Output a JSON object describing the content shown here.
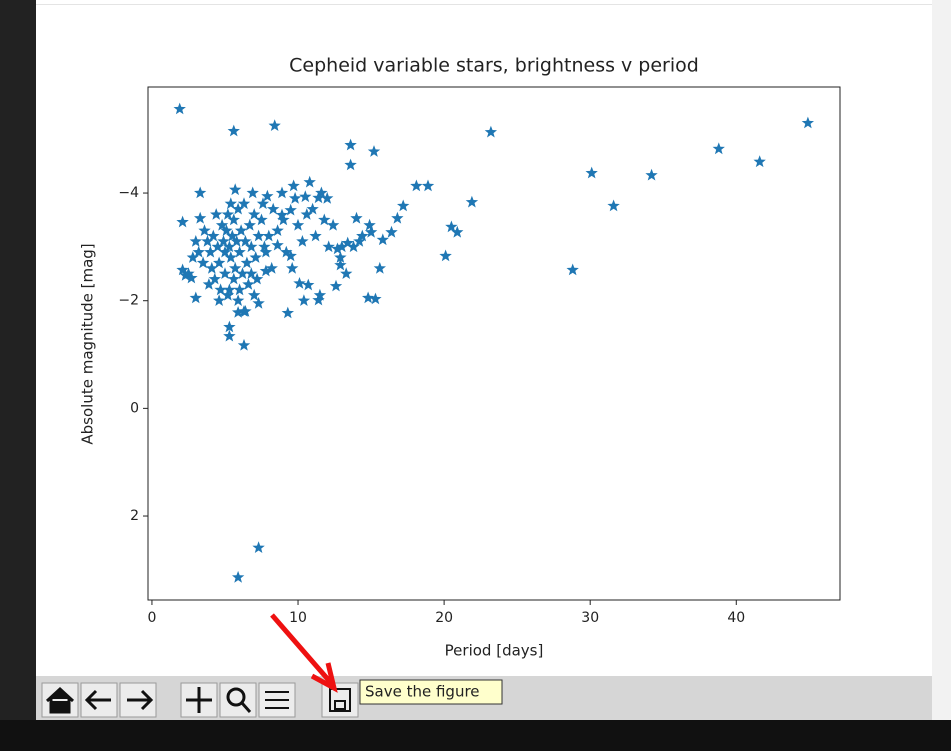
{
  "chart_data": {
    "type": "scatter",
    "title": "Cepheid variable stars, brightness v period",
    "x_label": "Period [days]",
    "y_label": "Absolute magnitude [mag]",
    "color": "#1f77b4",
    "marker": "star",
    "y_inverted": true,
    "xlim": [
      -0.27,
      47.1
    ],
    "ylim": [
      3.56,
      -5.97
    ],
    "xticks": [
      0,
      10,
      20,
      30,
      40
    ],
    "yticks": [
      {
        "value": -4,
        "label": "−4"
      },
      {
        "value": -2,
        "label": "−2"
      },
      0,
      2
    ],
    "x": [
      1.9,
      5.6,
      8.4,
      13.6,
      13.6,
      15.2,
      23.2,
      44.9,
      38.8,
      41.6,
      30.1,
      34.2,
      31.6,
      28.8,
      21.9,
      20.5,
      20.9,
      20.1,
      18.1,
      18.9,
      17.2,
      16.8,
      16.4,
      15.8,
      15.0,
      14.0,
      13.4,
      12.7,
      12.9,
      12.6,
      14.8,
      15.3,
      15.6,
      11.4,
      10.7,
      10.1,
      9.3,
      7.3,
      5.9,
      6.3,
      5.3,
      5.3,
      6.3,
      5.9,
      7.3,
      3.0,
      2.3,
      2.1,
      2.7,
      2.1,
      3.3,
      3.3,
      5.7,
      7.9,
      9.7,
      10.8,
      10.5,
      9.5,
      8.6,
      7.8,
      8.9,
      9.5,
      11.4,
      3.8,
      4.0,
      4.2,
      4.5,
      4.6,
      4.8,
      4.9,
      5.0,
      5.1,
      5.2,
      5.3,
      5.4,
      5.5,
      5.6,
      5.7,
      5.8,
      5.9,
      6.0,
      6.1,
      6.2,
      6.3,
      6.4,
      6.5,
      6.7,
      6.8,
      7.0,
      7.1,
      7.3,
      7.5,
      7.7,
      4.3,
      4.7,
      5.0,
      5.3,
      5.6,
      6.0,
      3.5,
      3.2,
      3.6,
      2.8,
      4.4,
      4.1,
      6.6,
      7.2,
      8.0,
      8.3,
      8.6,
      9.0,
      9.2,
      10.0,
      10.3,
      11.0,
      11.2,
      11.8,
      12.1,
      12.4,
      13.0,
      13.8,
      14.4,
      14.9,
      11.6,
      12.0,
      10.6,
      9.8,
      8.9,
      7.6,
      6.9,
      5.4,
      3.0,
      2.5,
      3.9,
      4.6,
      5.2,
      5.9,
      6.8,
      7.8,
      8.2,
      9.6,
      10.4,
      11.5,
      12.9,
      13.3,
      14.2,
      6.4,
      7.0
    ],
    "values": [
      -5.56,
      -5.15,
      -5.25,
      -4.89,
      -4.52,
      -4.77,
      -5.13,
      -5.3,
      -4.82,
      -4.58,
      -4.37,
      -4.33,
      -3.76,
      -2.57,
      -3.83,
      -3.37,
      -3.27,
      -2.83,
      -4.13,
      -4.13,
      -3.76,
      -3.53,
      -3.27,
      -3.13,
      -3.27,
      -3.53,
      -3.07,
      -2.96,
      -2.66,
      -2.27,
      -2.05,
      -2.03,
      -2.6,
      -2.01,
      -2.29,
      -2.32,
      -1.77,
      2.59,
      3.14,
      -1.17,
      -1.51,
      -1.34,
      -1.8,
      -1.78,
      -1.95,
      -2.05,
      -2.47,
      -2.57,
      -2.42,
      -3.46,
      -4.0,
      -3.53,
      -4.06,
      -3.94,
      -4.13,
      -4.2,
      -3.93,
      -2.83,
      -3.03,
      -2.55,
      -3.59,
      -3.68,
      -3.91,
      -3.1,
      -2.9,
      -3.2,
      -3.0,
      -2.7,
      -3.4,
      -3.1,
      -2.9,
      -3.3,
      -3.6,
      -3.0,
      -2.8,
      -3.2,
      -3.5,
      -2.6,
      -3.1,
      -3.7,
      -2.9,
      -3.3,
      -2.5,
      -3.8,
      -3.1,
      -2.7,
      -3.4,
      -3.0,
      -3.6,
      -2.8,
      -3.2,
      -3.5,
      -3.0,
      -2.4,
      -2.2,
      -2.5,
      -2.2,
      -2.4,
      -2.2,
      -2.7,
      -2.9,
      -3.3,
      -2.8,
      -3.6,
      -2.6,
      -2.3,
      -2.4,
      -3.2,
      -3.7,
      -3.3,
      -3.5,
      -2.9,
      -3.4,
      -3.1,
      -3.7,
      -3.2,
      -3.5,
      -3.0,
      -3.4,
      -3.0,
      -3.0,
      -3.2,
      -3.4,
      -4.0,
      -3.9,
      -3.6,
      -3.9,
      -4.0,
      -3.8,
      -4.0,
      -3.8,
      -3.1,
      -2.5,
      -2.3,
      -2.0,
      -2.1,
      -2.0,
      -2.5,
      -2.9,
      -2.6,
      -2.6,
      -2.0,
      -2.1,
      -2.8,
      -2.5,
      -3.1,
      -1.8,
      -2.1
    ]
  },
  "toolbar": {
    "tooltip": "Save the figure"
  }
}
